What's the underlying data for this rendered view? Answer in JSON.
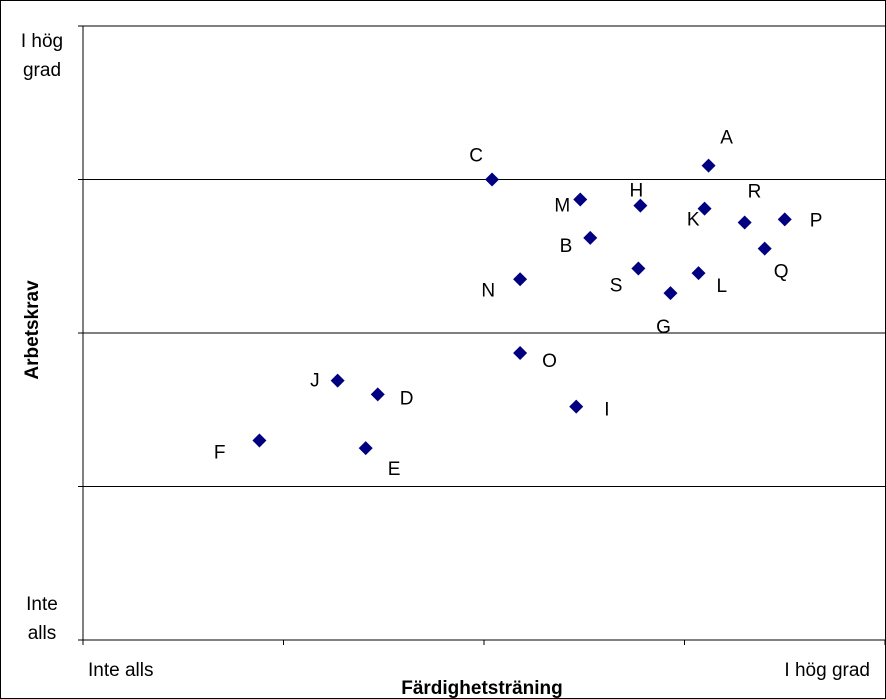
{
  "chart_data": {
    "type": "scatter",
    "xlabel": "Färdighetsträning",
    "ylabel": "Arbetskrav",
    "x_axis_end_labels": {
      "low": "Inte alls",
      "high": "I hög grad"
    },
    "y_axis_end_labels": {
      "low": [
        "Inte",
        "alls"
      ],
      "high": [
        "I hög",
        "grad"
      ]
    },
    "xlim": [
      0,
      4
    ],
    "ylim": [
      0,
      4
    ],
    "grid": "horizontal",
    "legend": "none",
    "marker": "diamond",
    "marker_color": "#000080",
    "points": [
      {
        "label": "A",
        "x": 3.12,
        "y": 3.09
      },
      {
        "label": "B",
        "x": 2.53,
        "y": 2.62
      },
      {
        "label": "C",
        "x": 2.04,
        "y": 3.0
      },
      {
        "label": "D",
        "x": 1.47,
        "y": 1.6
      },
      {
        "label": "E",
        "x": 1.41,
        "y": 1.25
      },
      {
        "label": "F",
        "x": 0.88,
        "y": 1.3
      },
      {
        "label": "G",
        "x": 2.93,
        "y": 2.26
      },
      {
        "label": "H",
        "x": 2.78,
        "y": 2.83
      },
      {
        "label": "I",
        "x": 2.46,
        "y": 1.52
      },
      {
        "label": "J",
        "x": 1.27,
        "y": 1.69
      },
      {
        "label": "K",
        "x": 3.1,
        "y": 2.81
      },
      {
        "label": "L",
        "x": 3.07,
        "y": 2.39
      },
      {
        "label": "M",
        "x": 2.48,
        "y": 2.87
      },
      {
        "label": "N",
        "x": 2.18,
        "y": 2.35
      },
      {
        "label": "O",
        "x": 2.18,
        "y": 1.87
      },
      {
        "label": "P",
        "x": 3.5,
        "y": 2.74
      },
      {
        "label": "Q",
        "x": 3.4,
        "y": 2.55
      },
      {
        "label": "R",
        "x": 3.3,
        "y": 2.72
      },
      {
        "label": "S",
        "x": 2.77,
        "y": 2.42
      }
    ]
  }
}
